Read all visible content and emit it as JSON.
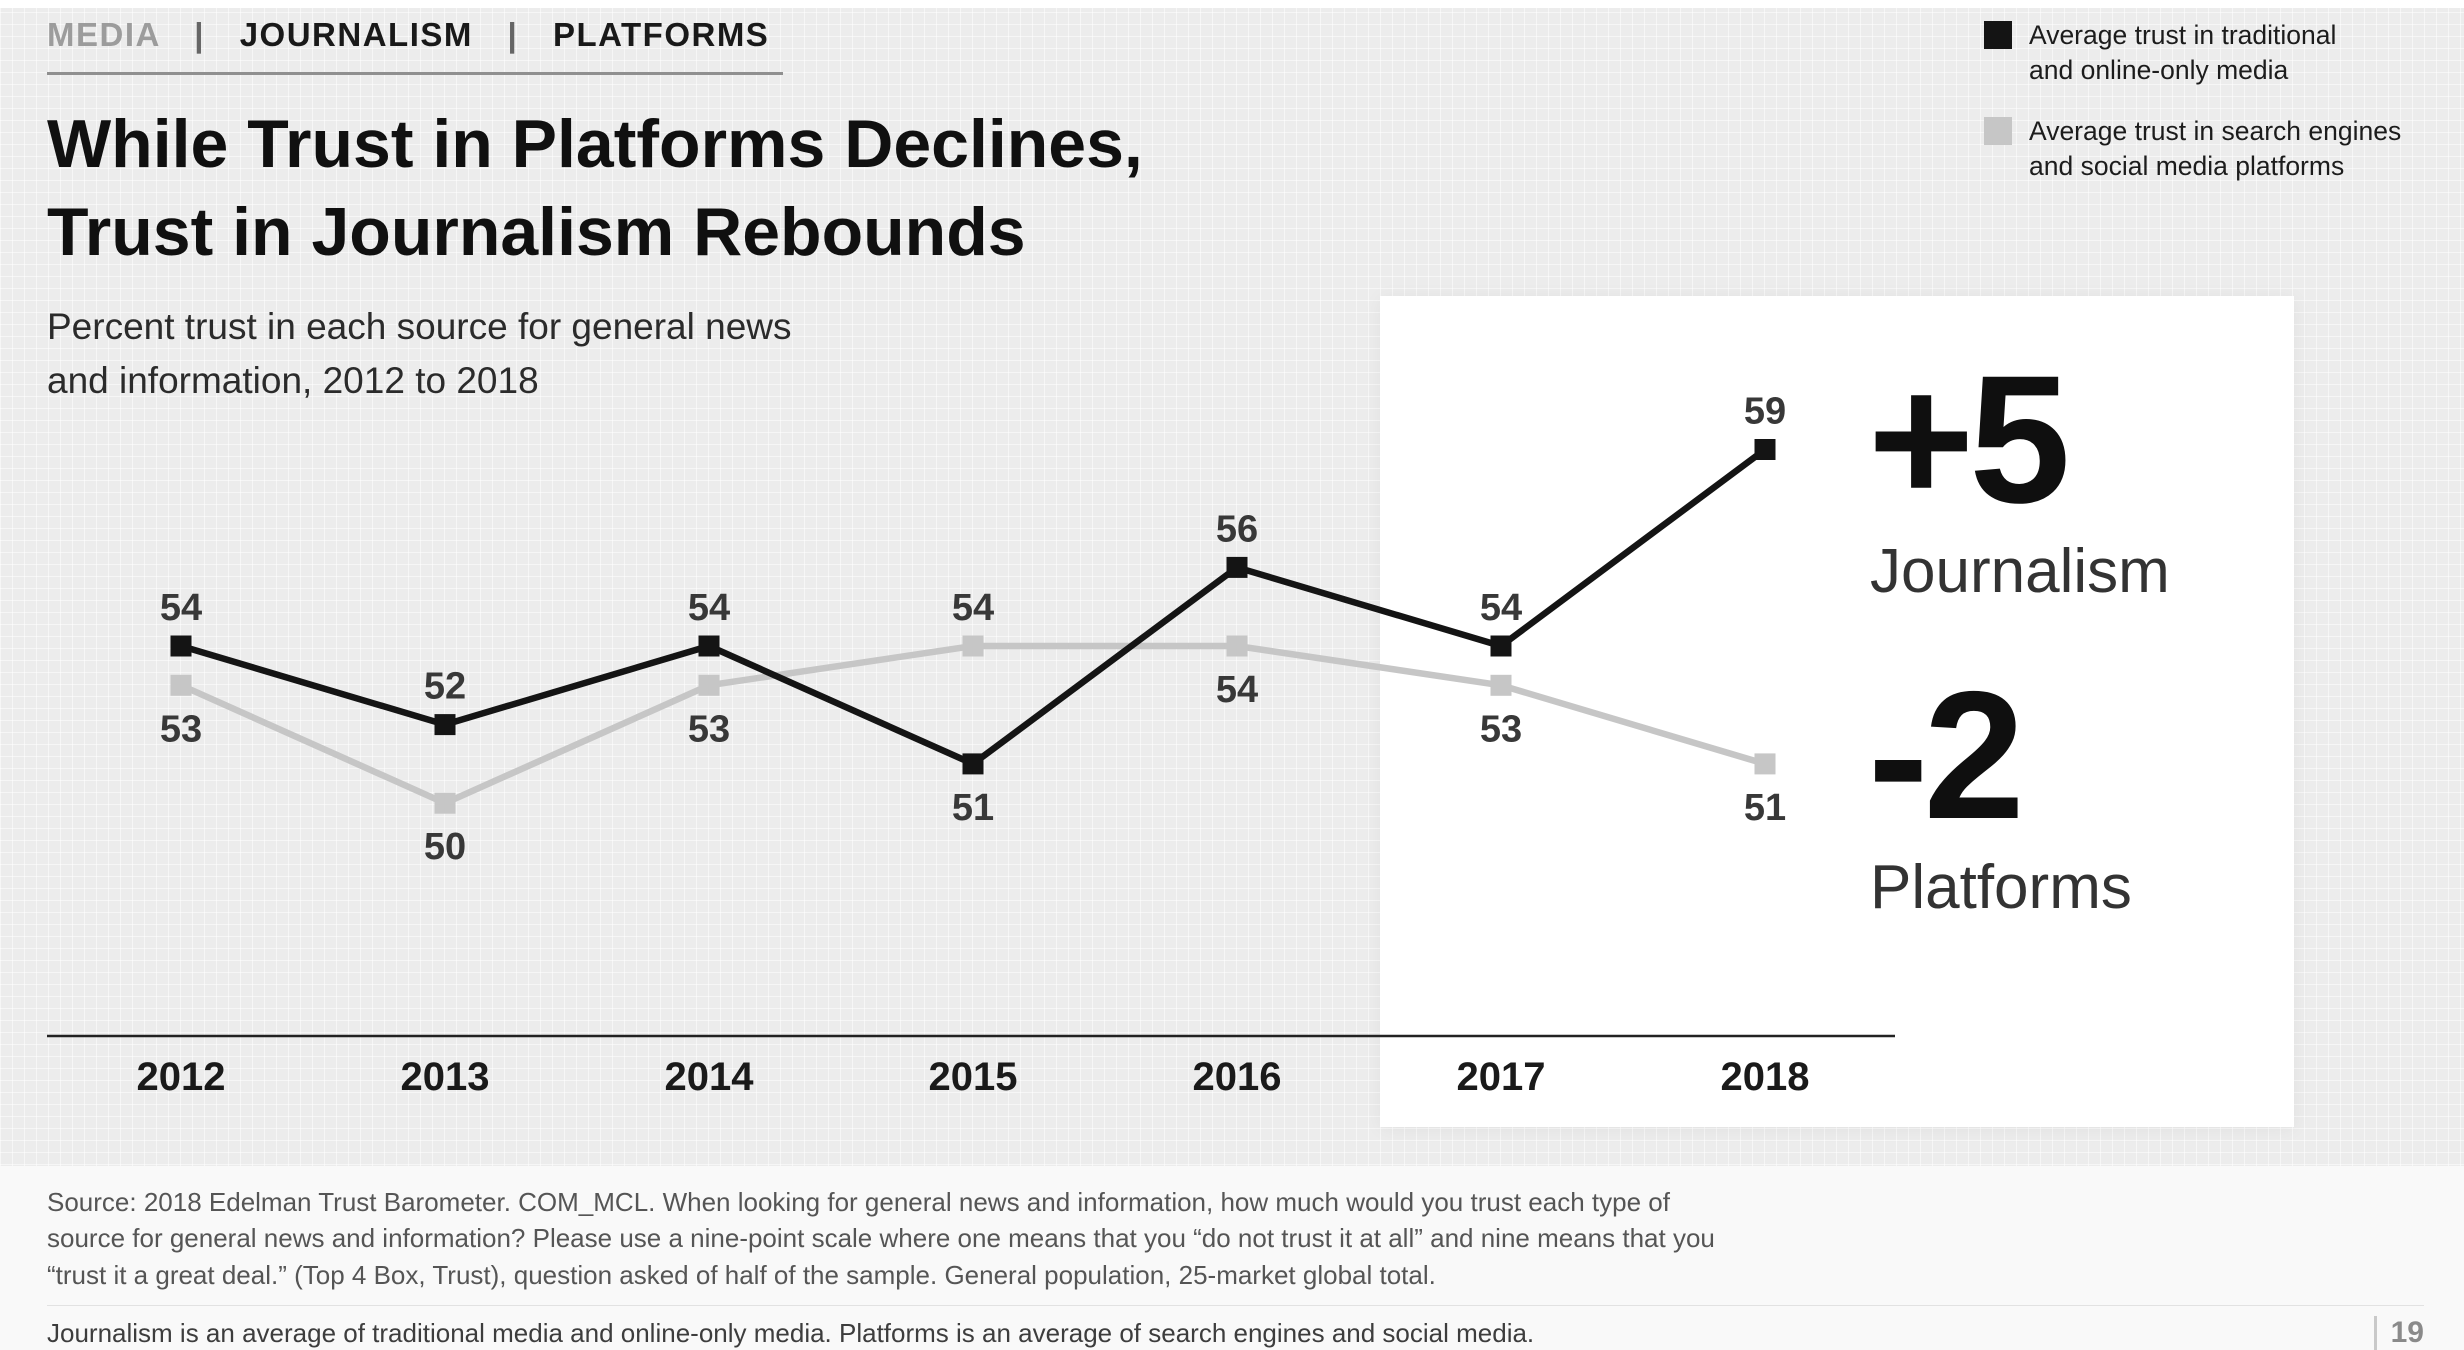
{
  "nav": {
    "separator": "|",
    "items": [
      {
        "label": "MEDIA",
        "active": false
      },
      {
        "label": "JOURNALISM",
        "active": true
      },
      {
        "label": "PLATFORMS",
        "active": true
      }
    ]
  },
  "title": {
    "line1": "While Trust in Platforms Declines,",
    "line2": "Trust in Journalism Rebounds"
  },
  "subtitle": "Percent trust in each source for general news\nand information, 2012 to 2018",
  "legend": {
    "items": [
      {
        "label": "Average trust in traditional\nand online-only media",
        "color": "#111111"
      },
      {
        "label": "Average trust in search engines\nand social media platforms",
        "color": "#c6c6c6"
      }
    ]
  },
  "chart_data": {
    "type": "line",
    "title": "While Trust in Platforms Declines, Trust in Journalism Rebounds",
    "xlabel": "",
    "ylabel": "Percent trust",
    "categories": [
      "2012",
      "2013",
      "2014",
      "2015",
      "2016",
      "2017",
      "2018"
    ],
    "series": [
      {
        "name": "Journalism (average trust in traditional and online-only media)",
        "color": "#141414",
        "values": [
          54,
          52,
          54,
          51,
          56,
          54,
          59
        ],
        "label_positions": [
          "above",
          "above",
          "above",
          "below",
          "above",
          "above",
          "above"
        ]
      },
      {
        "name": "Platforms (average trust in search engines and social media platforms)",
        "color": "#c6c6c6",
        "values": [
          53,
          50,
          53,
          54,
          54,
          53,
          51
        ],
        "label_positions": [
          "below",
          "below",
          "below",
          "above",
          "below",
          "below",
          "below"
        ]
      }
    ],
    "ylim": [
      44,
      64
    ],
    "grid": false,
    "legend_position": "top-right",
    "highlight_range": [
      "2017",
      "2018"
    ],
    "annotations": [
      "+5 Journalism",
      "-2 Platforms"
    ]
  },
  "annotation": {
    "journalism_delta": "+5",
    "journalism_label": "Journalism",
    "platforms_delta": "-2",
    "platforms_label": "Platforms"
  },
  "footer": {
    "source": "Source: 2018 Edelman Trust Barometer. COM_MCL. When looking for general news and information, how much would you trust each type of source for general news and information? Please use a nine-point scale where one means that you “do not trust it at all” and nine means that you “trust it a great deal.” (Top 4 Box, Trust), question asked of half of the sample. General population, 25-market global total.",
    "note": "Journalism is an average of traditional media and online-only media. Platforms is an average of search engines and social media.",
    "page_number": "19"
  }
}
